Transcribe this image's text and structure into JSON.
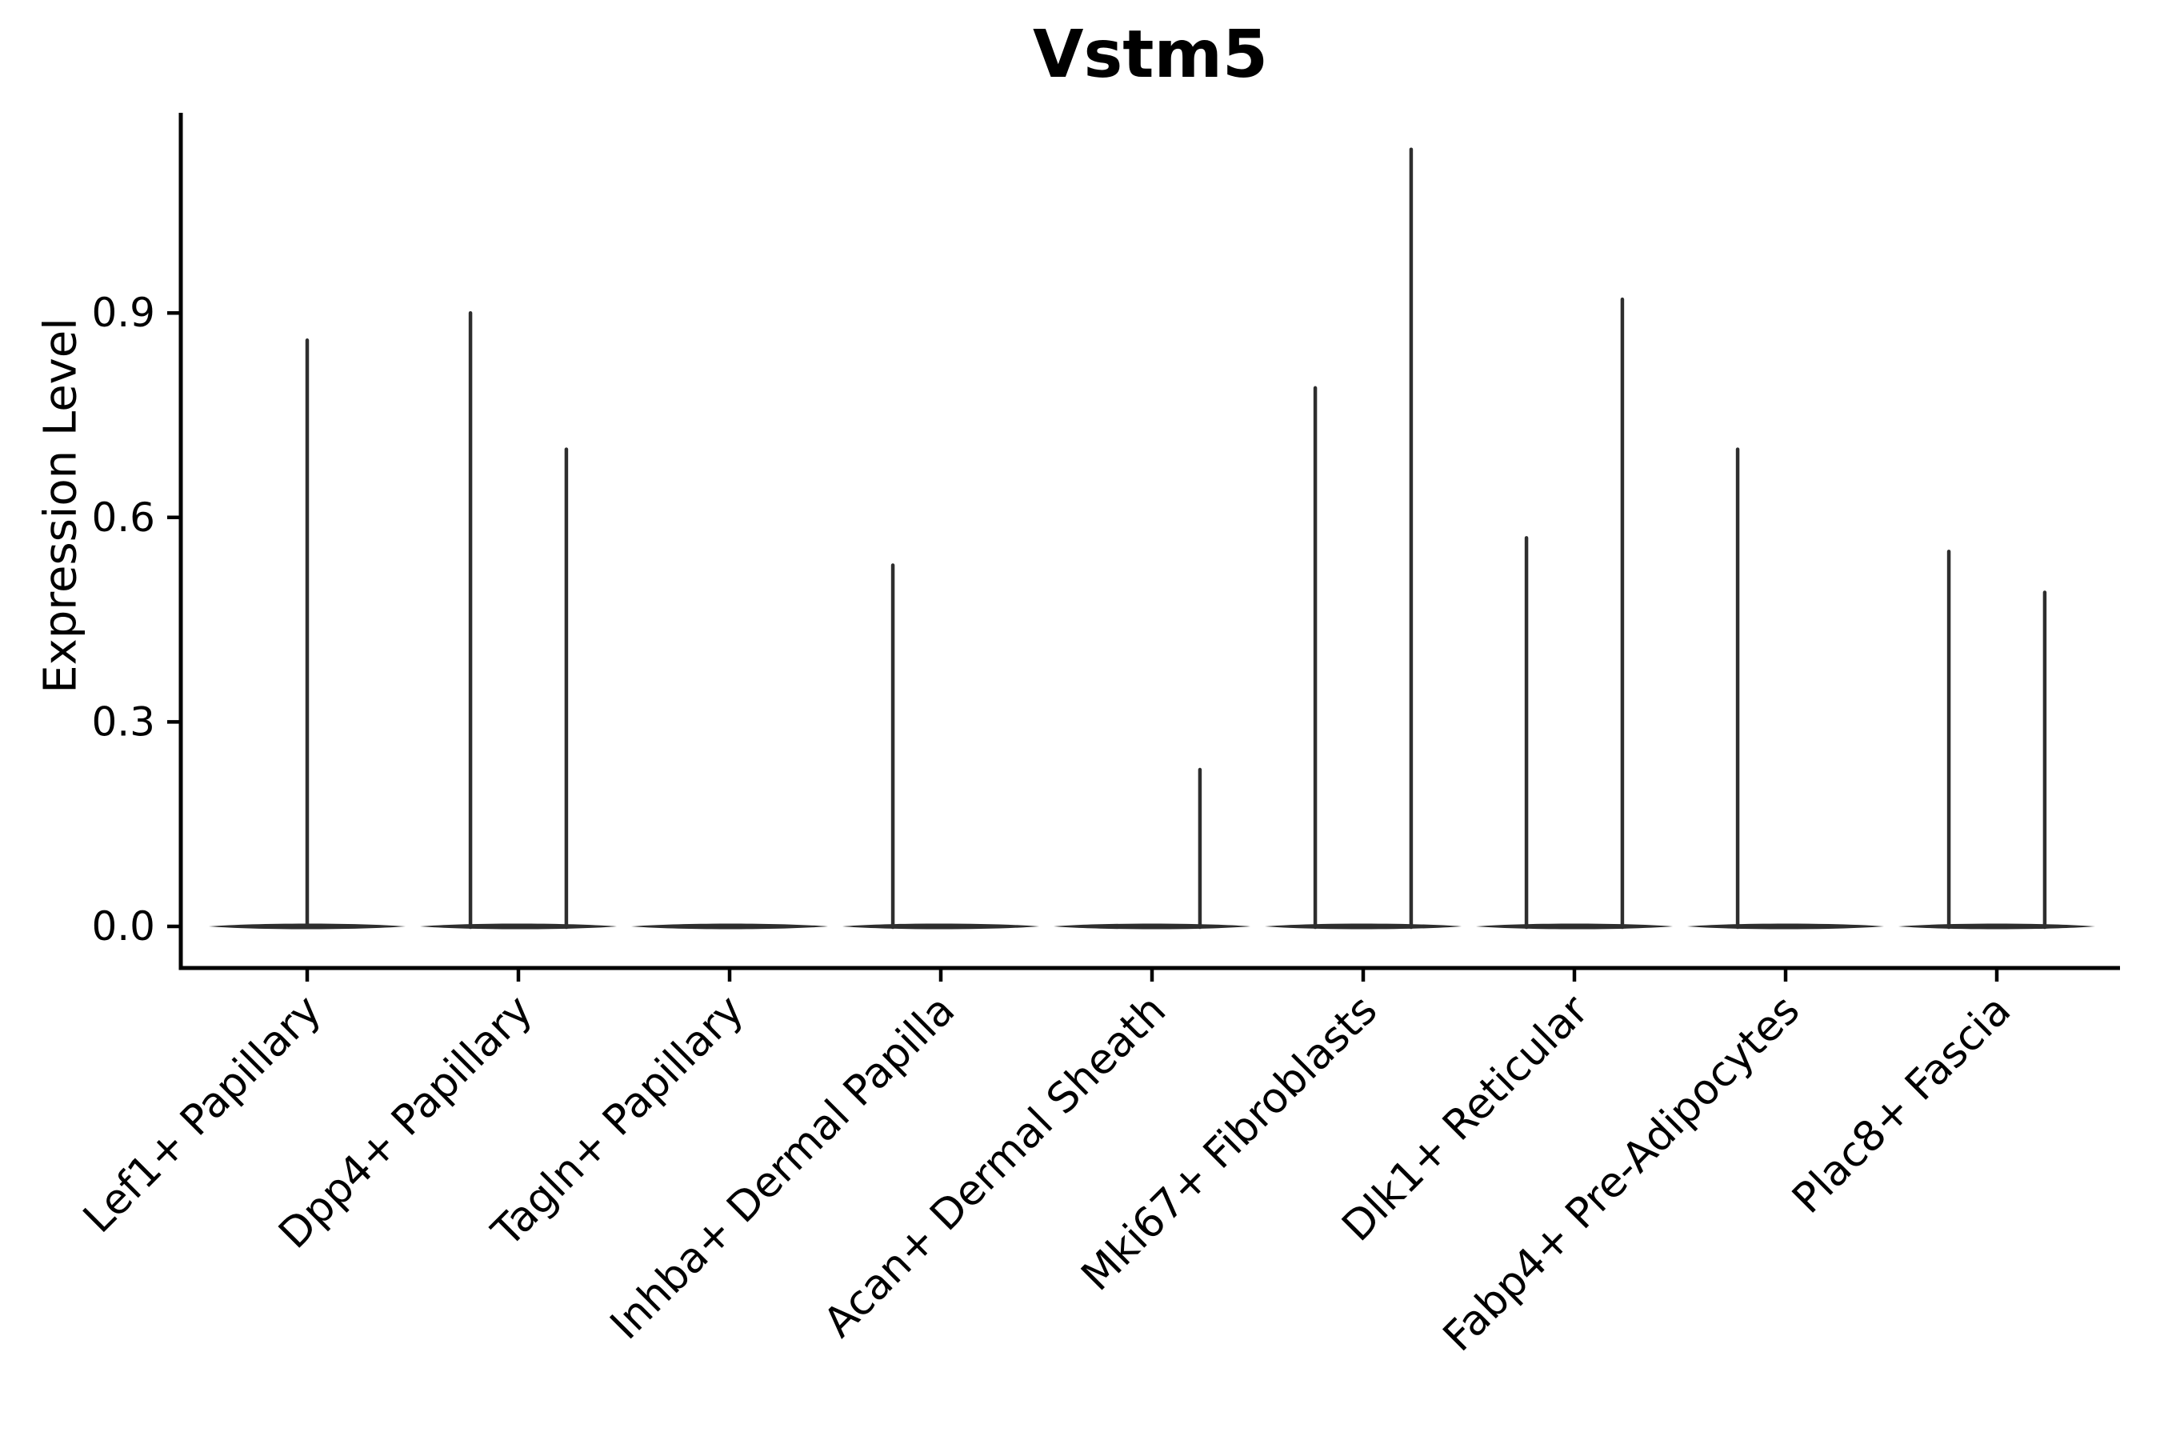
{
  "chart_data": {
    "type": "violin",
    "title": "Vstm5",
    "ylabel": "Expression Level",
    "xlabel": "",
    "grid": false,
    "legend": "none",
    "ylim": [
      -0.06,
      1.19
    ],
    "yticks": [
      {
        "value": 0.0,
        "label": "0.0"
      },
      {
        "value": 0.3,
        "label": "0.3"
      },
      {
        "value": 0.6,
        "label": "0.6"
      },
      {
        "value": 0.9,
        "label": "0.9"
      }
    ],
    "categories": [
      "Lef1+ Papillary",
      "Dpp4+ Papillary",
      "Tagln+ Papillary",
      "Inhba+ Dermal Papilla",
      "Acan+ Dermal Sheath",
      "Mki67+ Fibroblasts",
      "Dlk1+ Reticular",
      "Fabp4+ Pre-Adipocytes",
      "Plac8+ Fascia"
    ],
    "baseline_halfwidth": 0.466,
    "violins": [
      {
        "category": "Lef1+ Papillary",
        "baseline_value": 0.0,
        "spikes": [
          {
            "offset": 0.0,
            "max": 0.86
          }
        ]
      },
      {
        "category": "Dpp4+ Papillary",
        "baseline_value": 0.0,
        "spikes": [
          {
            "offset": -0.227,
            "max": 0.9
          },
          {
            "offset": 0.227,
            "max": 0.7
          }
        ]
      },
      {
        "category": "Tagln+ Papillary",
        "baseline_value": 0.0,
        "spikes": []
      },
      {
        "category": "Inhba+ Dermal Papilla",
        "baseline_value": 0.0,
        "spikes": [
          {
            "offset": -0.227,
            "max": 0.53
          }
        ]
      },
      {
        "category": "Acan+ Dermal Sheath",
        "baseline_value": 0.0,
        "spikes": [
          {
            "offset": 0.227,
            "max": 0.23
          }
        ]
      },
      {
        "category": "Mki67+ Fibroblasts",
        "baseline_value": 0.0,
        "spikes": [
          {
            "offset": -0.227,
            "max": 0.79
          },
          {
            "offset": 0.227,
            "max": 1.14
          }
        ]
      },
      {
        "category": "Dlk1+ Reticular",
        "baseline_value": 0.0,
        "spikes": [
          {
            "offset": -0.227,
            "max": 0.57
          },
          {
            "offset": 0.227,
            "max": 0.92
          }
        ]
      },
      {
        "category": "Fabp4+ Pre-Adipocytes",
        "baseline_value": 0.0,
        "spikes": [
          {
            "offset": -0.227,
            "max": 0.7
          }
        ]
      },
      {
        "category": "Plac8+ Fascia",
        "baseline_value": 0.0,
        "spikes": [
          {
            "offset": -0.227,
            "max": 0.55
          },
          {
            "offset": 0.227,
            "max": 0.49
          }
        ]
      }
    ],
    "colors": {
      "violin": "#2e2e2e",
      "axis": "#000000",
      "text": "#000000",
      "background": "#ffffff"
    }
  }
}
